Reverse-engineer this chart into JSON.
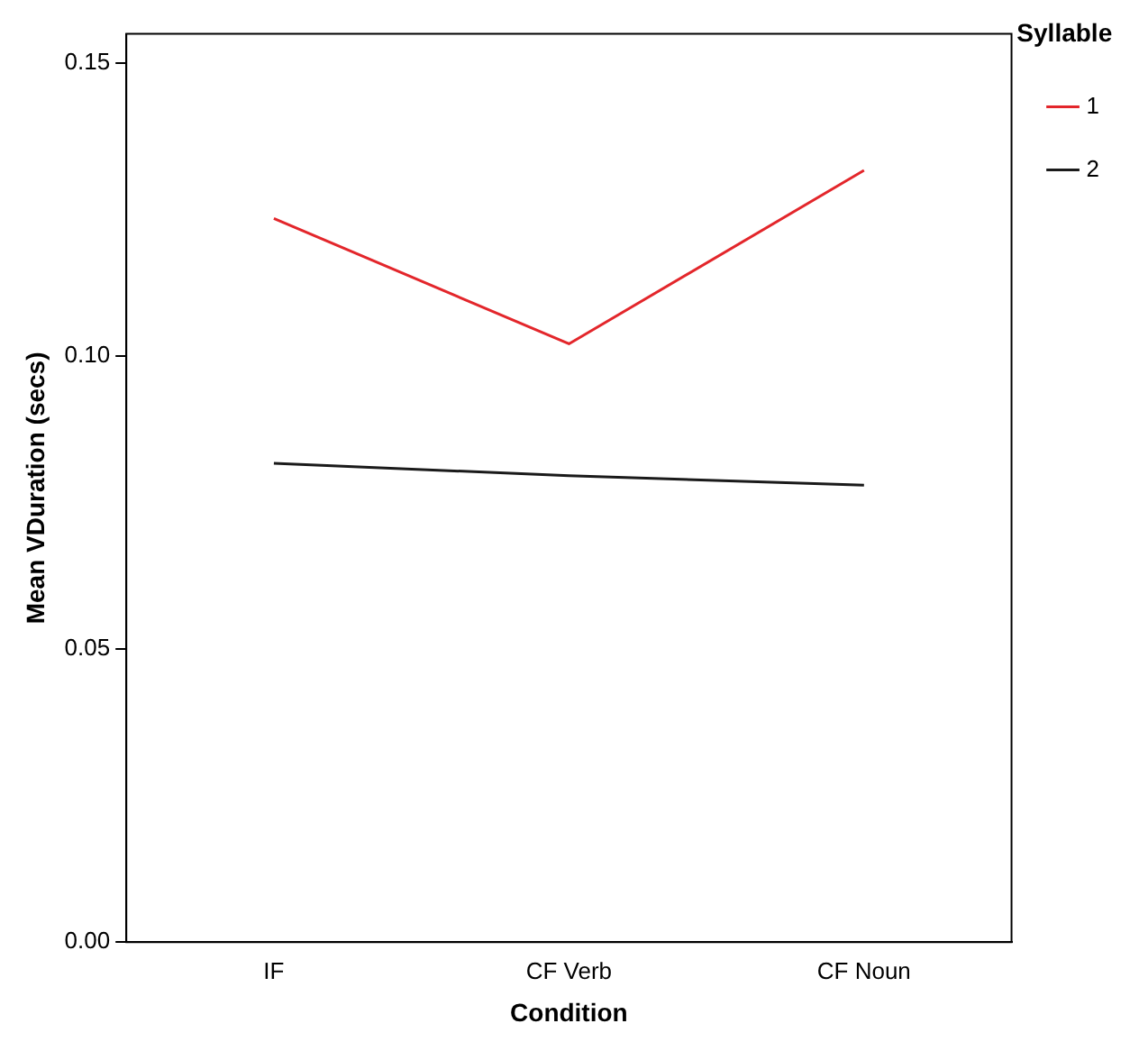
{
  "chart_data": {
    "type": "line",
    "xlabel": "Condition",
    "ylabel": "Mean VDuration (secs)",
    "legend_title": "Syllable",
    "categories": [
      "IF",
      "CF Verb",
      "CF Noun"
    ],
    "series": [
      {
        "name": "1",
        "color": "#e3262b",
        "values": [
          0.1235,
          0.1021,
          0.1317
        ]
      },
      {
        "name": "2",
        "color": "#1a1a1a",
        "values": [
          0.0817,
          0.0796,
          0.078
        ]
      }
    ],
    "ylim": [
      0,
      0.155
    ],
    "yticks": [
      {
        "value": 0,
        "label": "0.00"
      },
      {
        "value": 0.05,
        "label": "0.05"
      },
      {
        "value": 0.1,
        "label": "0.10"
      },
      {
        "value": 0.15,
        "label": "0.15"
      }
    ],
    "grid": false,
    "legend": "top right",
    "marker": "none",
    "line_style": "solid"
  }
}
